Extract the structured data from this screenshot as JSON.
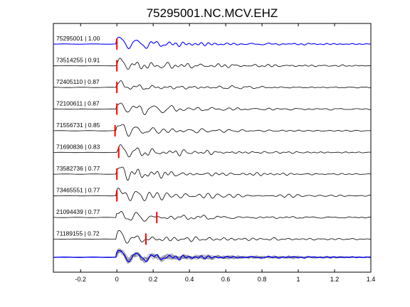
{
  "chart_data": {
    "type": "line",
    "title": "75295001.NC.MCV.EHZ",
    "xlabel": "",
    "ylabel": "",
    "xlim": [
      -0.35,
      1.4
    ],
    "xticks": [
      -0.2,
      0,
      0.2,
      0.4,
      0.6,
      0.8,
      1,
      1.2,
      1.4
    ],
    "xtick_labels": [
      "-0.2",
      "0",
      "0.2",
      "0.4",
      "0.6",
      "0.8",
      "1",
      "1.2",
      "1.4"
    ],
    "grid": false,
    "colors": {
      "reference": "#0000ff",
      "trace": "#000000",
      "pick": "#ff0000",
      "stack": "#808080"
    },
    "traces": [
      {
        "label": "75295001 | 1.00",
        "event_id": "75295001",
        "correlation": 1.0,
        "pick_time": 0.0,
        "reference": true
      },
      {
        "label": "73514255 | 0.91",
        "event_id": "73514255",
        "correlation": 0.91,
        "pick_time": 0.0
      },
      {
        "label": "72405110 | 0.87",
        "event_id": "72405110",
        "correlation": 0.87,
        "pick_time": 0.0
      },
      {
        "label": "72100611 | 0.87",
        "event_id": "72100611",
        "correlation": 0.87,
        "pick_time": 0.0
      },
      {
        "label": "71556731 | 0.85",
        "event_id": "71556731",
        "correlation": 0.85,
        "pick_time": -0.01
      },
      {
        "label": "71690836 | 0.83",
        "event_id": "71690836",
        "correlation": 0.83,
        "pick_time": 0.01
      },
      {
        "label": "73582736 | 0.77",
        "event_id": "73582736",
        "correlation": 0.77,
        "pick_time": 0.0
      },
      {
        "label": "73465551 | 0.77",
        "event_id": "73465551",
        "correlation": 0.77,
        "pick_time": 0.0
      },
      {
        "label": "21094439 | 0.77",
        "event_id": "21094439",
        "correlation": 0.77,
        "pick_time": 0.22
      },
      {
        "label": "71189155 | 0.72",
        "event_id": "71189155",
        "correlation": 0.72,
        "pick_time": 0.16
      }
    ],
    "stack": {
      "label": "",
      "overlay_of_all_traces": true
    }
  }
}
